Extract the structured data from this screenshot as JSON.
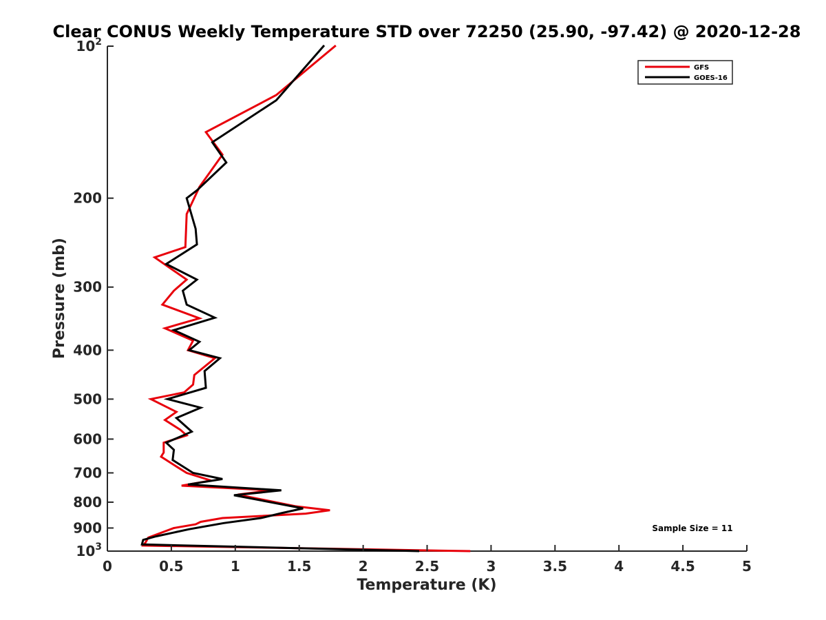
{
  "chart_data": {
    "type": "line",
    "title": "Clear CONUS Weekly Temperature STD over 72250 (25.90, -97.42) @ 2020-12-28",
    "xlabel": "Temperature (K)",
    "ylabel": "Pressure (mb)",
    "xlim": [
      0,
      5
    ],
    "ylim": [
      1000,
      100
    ],
    "y_scale": "log",
    "y_reversed": true,
    "grid": false,
    "x_ticks": [
      {
        "value": 0,
        "label": "0"
      },
      {
        "value": 0.5,
        "label": "0.5"
      },
      {
        "value": 1,
        "label": "1"
      },
      {
        "value": 1.5,
        "label": "1.5"
      },
      {
        "value": 2,
        "label": "2"
      },
      {
        "value": 2.5,
        "label": "2.5"
      },
      {
        "value": 3,
        "label": "3"
      },
      {
        "value": 3.5,
        "label": "3.5"
      },
      {
        "value": 4,
        "label": "4"
      },
      {
        "value": 4.5,
        "label": "4.5"
      },
      {
        "value": 5,
        "label": "5"
      }
    ],
    "y_ticks": [
      {
        "value": 100,
        "base": "10",
        "exp": "2"
      },
      {
        "value": 200,
        "base": "200",
        "exp": ""
      },
      {
        "value": 300,
        "base": "300",
        "exp": ""
      },
      {
        "value": 400,
        "base": "400",
        "exp": ""
      },
      {
        "value": 500,
        "base": "500",
        "exp": ""
      },
      {
        "value": 600,
        "base": "600",
        "exp": ""
      },
      {
        "value": 700,
        "base": "700",
        "exp": ""
      },
      {
        "value": 800,
        "base": "800",
        "exp": ""
      },
      {
        "value": 900,
        "base": "900",
        "exp": ""
      },
      {
        "value": 1000,
        "base": "10",
        "exp": "3"
      }
    ],
    "legend_position": "top-right",
    "annotation": "Sample Size = 11",
    "series": [
      {
        "name": "GFS",
        "color": "#e8000b",
        "points": [
          [
            1.78,
            100
          ],
          [
            1.32,
            125
          ],
          [
            0.77,
            148
          ],
          [
            0.9,
            164
          ],
          [
            0.72,
            190
          ],
          [
            0.62,
            215
          ],
          [
            0.61,
            250
          ],
          [
            0.37,
            262
          ],
          [
            0.62,
            290
          ],
          [
            0.52,
            305
          ],
          [
            0.43,
            325
          ],
          [
            0.72,
            346
          ],
          [
            0.45,
            362
          ],
          [
            0.67,
            383
          ],
          [
            0.63,
            400
          ],
          [
            0.84,
            415
          ],
          [
            0.68,
            448
          ],
          [
            0.67,
            468
          ],
          [
            0.6,
            485
          ],
          [
            0.34,
            500
          ],
          [
            0.54,
            530
          ],
          [
            0.45,
            550
          ],
          [
            0.57,
            575
          ],
          [
            0.62,
            590
          ],
          [
            0.44,
            610
          ],
          [
            0.44,
            638
          ],
          [
            0.42,
            650
          ],
          [
            0.54,
            680
          ],
          [
            0.62,
            700
          ],
          [
            0.81,
            725
          ],
          [
            0.58,
            742
          ],
          [
            1.28,
            758
          ],
          [
            1.02,
            773
          ],
          [
            1.47,
            815
          ],
          [
            1.74,
            830
          ],
          [
            1.55,
            843
          ],
          [
            0.9,
            860
          ],
          [
            0.73,
            875
          ],
          [
            0.69,
            885
          ],
          [
            0.52,
            900
          ],
          [
            0.32,
            940
          ],
          [
            0.3,
            960
          ],
          [
            0.28,
            975
          ],
          [
            2.83,
            1000
          ]
        ]
      },
      {
        "name": "GOES-16",
        "color": "#000000",
        "points": [
          [
            1.69,
            100
          ],
          [
            1.32,
            128
          ],
          [
            0.82,
            155
          ],
          [
            0.93,
            170
          ],
          [
            0.7,
            193
          ],
          [
            0.62,
            200
          ],
          [
            0.69,
            230
          ],
          [
            0.7,
            247
          ],
          [
            0.46,
            270
          ],
          [
            0.7,
            290
          ],
          [
            0.59,
            305
          ],
          [
            0.62,
            325
          ],
          [
            0.84,
            345
          ],
          [
            0.52,
            365
          ],
          [
            0.72,
            385
          ],
          [
            0.64,
            400
          ],
          [
            0.88,
            415
          ],
          [
            0.76,
            440
          ],
          [
            0.77,
            475
          ],
          [
            0.47,
            500
          ],
          [
            0.73,
            520
          ],
          [
            0.54,
            545
          ],
          [
            0.66,
            580
          ],
          [
            0.46,
            610
          ],
          [
            0.52,
            630
          ],
          [
            0.51,
            660
          ],
          [
            0.67,
            700
          ],
          [
            0.9,
            720
          ],
          [
            0.63,
            738
          ],
          [
            1.36,
            758
          ],
          [
            0.99,
            775
          ],
          [
            1.53,
            823
          ],
          [
            1.37,
            840
          ],
          [
            1.2,
            860
          ],
          [
            0.91,
            880
          ],
          [
            0.64,
            905
          ],
          [
            0.38,
            935
          ],
          [
            0.28,
            950
          ],
          [
            0.27,
            970
          ],
          [
            2.43,
            1000
          ]
        ]
      }
    ]
  }
}
